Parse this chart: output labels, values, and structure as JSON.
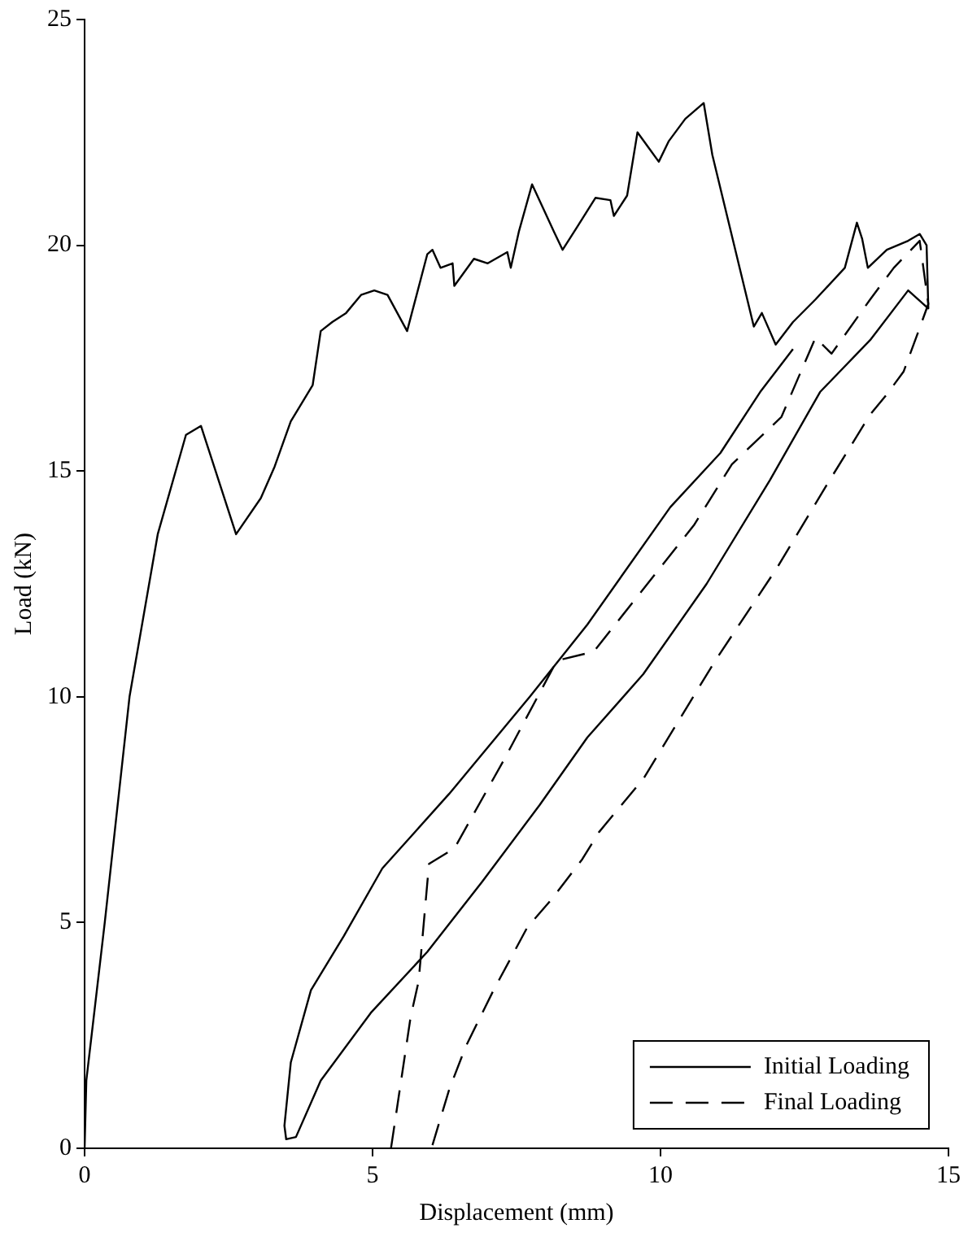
{
  "chart_data": {
    "type": "line",
    "xlabel": "Displacement (mm)",
    "ylabel": "Load (kN)",
    "xlim": [
      0,
      15
    ],
    "xticks": [
      0,
      5,
      10,
      15
    ],
    "ylim": [
      0,
      25
    ],
    "yticks": [
      0,
      5,
      10,
      15,
      20,
      25
    ],
    "legend": "bottom right",
    "marker": "none",
    "series": [
      {
        "name": "Initial Loading",
        "color": "#000000",
        "line_style": "solid",
        "x": [
          0,
          0.03,
          0.35,
          0.78,
          1.27,
          1.76,
          2.02,
          2.63,
          3.06,
          3.3,
          3.58,
          3.96,
          4.1,
          4.3,
          4.54,
          4.8,
          5.03,
          5.26,
          5.6,
          5.95,
          6.04,
          6.18,
          6.39,
          6.42,
          6.76,
          7.0,
          7.34,
          7.4,
          7.54,
          7.77,
          8.15,
          8.3,
          8.55,
          8.87,
          9.13,
          9.19,
          9.42,
          9.6,
          9.8,
          9.97,
          10.14,
          10.43,
          10.75,
          10.9,
          11.62,
          11.76,
          12.0,
          12.3,
          12.69,
          13.2,
          13.41,
          13.5,
          13.6,
          13.93,
          14.3,
          14.5,
          14.62,
          14.65,
          14.3,
          13.64,
          12.77,
          11.9,
          10.8,
          9.7,
          8.73,
          7.9,
          6.9,
          5.95,
          4.97,
          4.1,
          3.67,
          3.5,
          3.47,
          3.58,
          3.93,
          4.5,
          5.17,
          6.33,
          7.73,
          8.73,
          10.17,
          11.04,
          11.73,
          12.3
        ],
        "values": [
          0,
          1.5,
          5.0,
          10.0,
          13.6,
          15.8,
          16.0,
          13.6,
          14.4,
          15.1,
          16.1,
          16.9,
          18.1,
          18.3,
          18.5,
          18.9,
          19.0,
          18.9,
          18.1,
          19.8,
          19.9,
          19.5,
          19.6,
          19.1,
          19.7,
          19.6,
          19.85,
          19.5,
          20.3,
          21.35,
          20.3,
          19.9,
          20.4,
          21.05,
          21.0,
          20.65,
          21.1,
          22.5,
          22.15,
          21.85,
          22.3,
          22.8,
          23.15,
          22.0,
          18.2,
          18.5,
          17.8,
          18.3,
          18.8,
          19.5,
          20.5,
          20.15,
          19.5,
          19.9,
          20.1,
          20.25,
          20.0,
          18.6,
          19.0,
          17.9,
          16.75,
          14.8,
          12.5,
          10.5,
          9.1,
          7.6,
          5.9,
          4.35,
          3.0,
          1.5,
          0.25,
          0.2,
          0.5,
          1.9,
          3.5,
          4.7,
          6.2,
          7.85,
          10.0,
          11.6,
          14.2,
          15.4,
          16.75,
          17.7
        ]
      },
      {
        "name": "Final Loading",
        "color": "#000000",
        "line_style": "dashed",
        "x": [
          5.32,
          5.66,
          5.8,
          5.98,
          6.42,
          7.28,
          8.2,
          8.84,
          10.58,
          11.24,
          12.1,
          12.69,
          12.97,
          13.64,
          14.05,
          14.5,
          14.65,
          14.48,
          14.22,
          13.93,
          13.64,
          12.89,
          12.02,
          10.95,
          9.71,
          8.93,
          8.64,
          8.1,
          7.69,
          7.1,
          6.62,
          6.33,
          6.04
        ],
        "values": [
          0,
          2.9,
          3.7,
          6.3,
          6.64,
          8.6,
          10.8,
          11.0,
          13.8,
          15.15,
          16.2,
          17.95,
          17.6,
          18.8,
          19.5,
          20.1,
          18.7,
          18.1,
          17.2,
          16.7,
          16.25,
          14.7,
          12.85,
          10.8,
          8.2,
          7.0,
          6.4,
          5.5,
          4.9,
          3.5,
          2.26,
          1.3,
          0.07
        ]
      }
    ]
  }
}
